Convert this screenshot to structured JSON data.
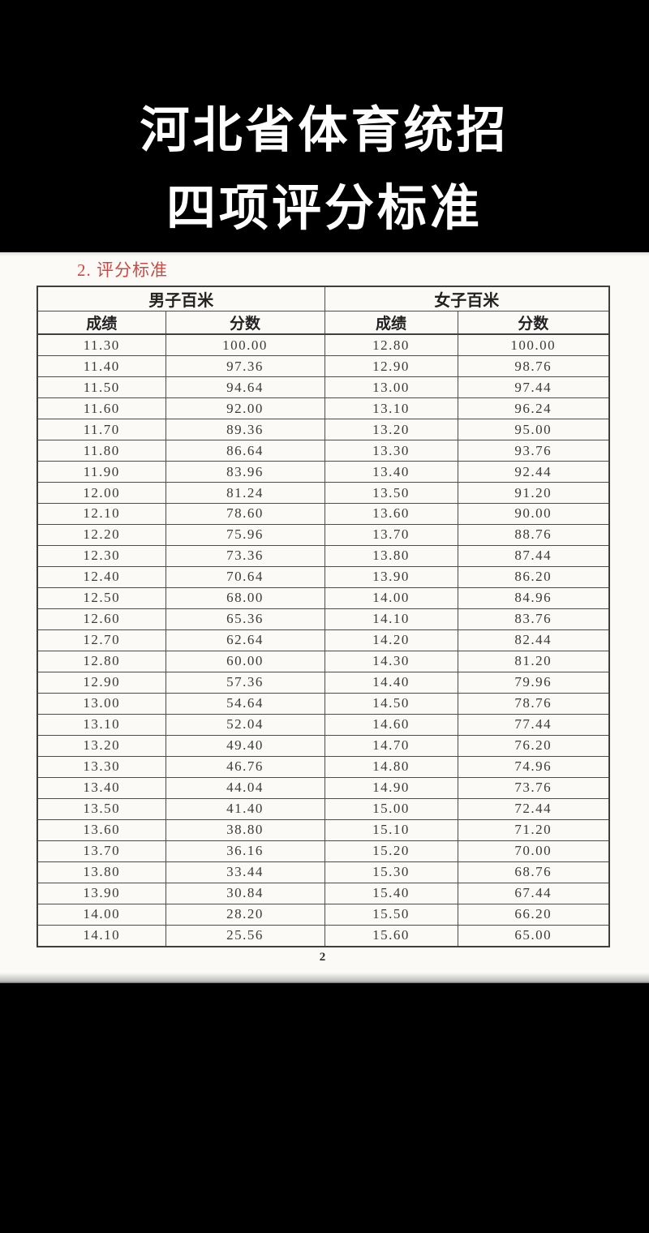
{
  "header": {
    "title_line1": "河北省体育统招",
    "title_line2": "四项评分标准"
  },
  "document": {
    "section_label": "2. 评分标准",
    "page_number": "2"
  },
  "table": {
    "group_headers": [
      "男子百米",
      "女子百米"
    ],
    "sub_headers": [
      "成绩",
      "分数",
      "成绩",
      "分数"
    ],
    "rows": [
      [
        "11.30",
        "100.00",
        "12.80",
        "100.00"
      ],
      [
        "11.40",
        "97.36",
        "12.90",
        "98.76"
      ],
      [
        "11.50",
        "94.64",
        "13.00",
        "97.44"
      ],
      [
        "11.60",
        "92.00",
        "13.10",
        "96.24"
      ],
      [
        "11.70",
        "89.36",
        "13.20",
        "95.00"
      ],
      [
        "11.80",
        "86.64",
        "13.30",
        "93.76"
      ],
      [
        "11.90",
        "83.96",
        "13.40",
        "92.44"
      ],
      [
        "12.00",
        "81.24",
        "13.50",
        "91.20"
      ],
      [
        "12.10",
        "78.60",
        "13.60",
        "90.00"
      ],
      [
        "12.20",
        "75.96",
        "13.70",
        "88.76"
      ],
      [
        "12.30",
        "73.36",
        "13.80",
        "87.44"
      ],
      [
        "12.40",
        "70.64",
        "13.90",
        "86.20"
      ],
      [
        "12.50",
        "68.00",
        "14.00",
        "84.96"
      ],
      [
        "12.60",
        "65.36",
        "14.10",
        "83.76"
      ],
      [
        "12.70",
        "62.64",
        "14.20",
        "82.44"
      ],
      [
        "12.80",
        "60.00",
        "14.30",
        "81.20"
      ],
      [
        "12.90",
        "57.36",
        "14.40",
        "79.96"
      ],
      [
        "13.00",
        "54.64",
        "14.50",
        "78.76"
      ],
      [
        "13.10",
        "52.04",
        "14.60",
        "77.44"
      ],
      [
        "13.20",
        "49.40",
        "14.70",
        "76.20"
      ],
      [
        "13.30",
        "46.76",
        "14.80",
        "74.96"
      ],
      [
        "13.40",
        "44.04",
        "14.90",
        "73.76"
      ],
      [
        "13.50",
        "41.40",
        "15.00",
        "72.44"
      ],
      [
        "13.60",
        "38.80",
        "15.10",
        "71.20"
      ],
      [
        "13.70",
        "36.16",
        "15.20",
        "70.00"
      ],
      [
        "13.80",
        "33.44",
        "15.30",
        "68.76"
      ],
      [
        "13.90",
        "30.84",
        "15.40",
        "67.44"
      ],
      [
        "14.00",
        "28.20",
        "15.50",
        "66.20"
      ],
      [
        "14.10",
        "25.56",
        "15.60",
        "65.00"
      ]
    ]
  },
  "colors": {
    "background": "#000000",
    "paper": "#fbfaf7",
    "title_text": "#ffffff",
    "accent_red": "#c94b46",
    "table_border": "#4c4c4c",
    "table_text": "#3a3a3a"
  }
}
